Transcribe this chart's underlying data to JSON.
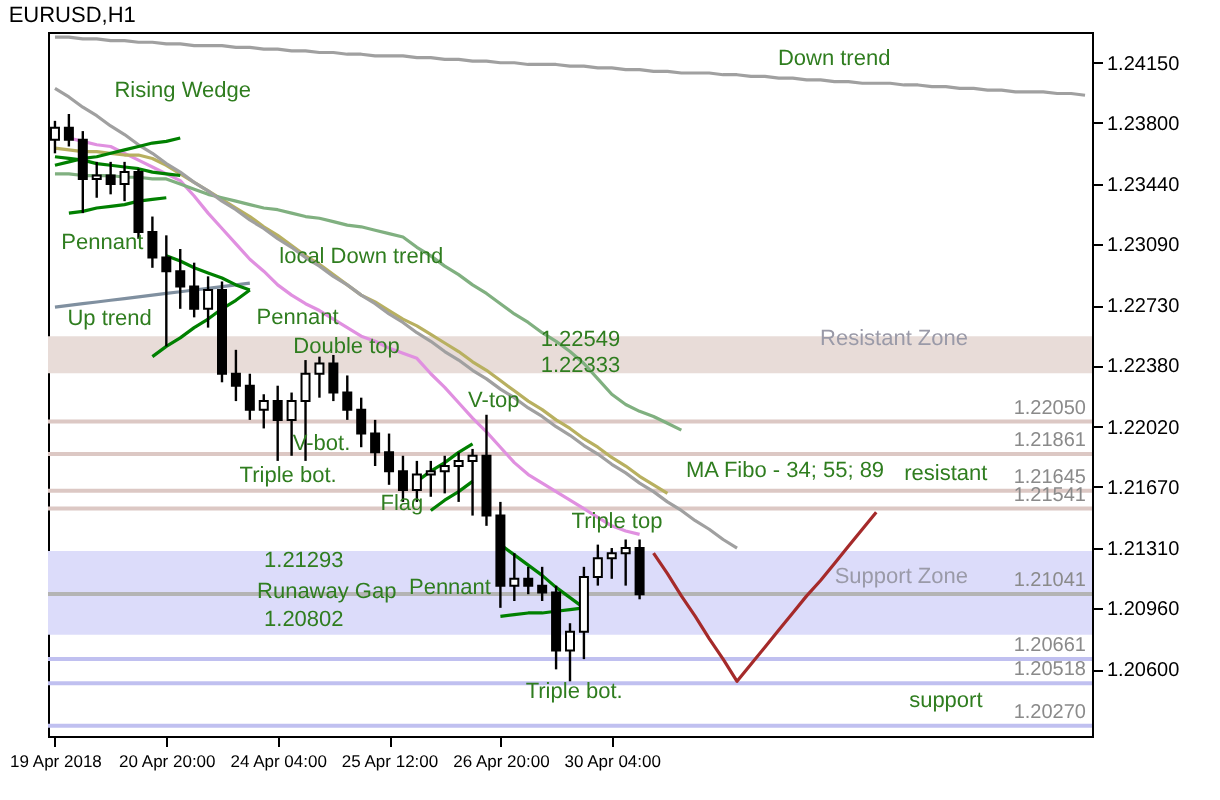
{
  "chart_data": {
    "type": "candlestick",
    "title": "EURUSD,H1",
    "color": "#000000",
    "categories": [
      "19 Apr 2018",
      null,
      null,
      null,
      null,
      null,
      null,
      null,
      "20 Apr 20:00",
      null,
      null,
      null,
      null,
      null,
      null,
      null,
      "24 Apr 04:00",
      null,
      null,
      null,
      null,
      null,
      null,
      null,
      "25 Apr 12:00",
      null,
      null,
      null,
      null,
      null,
      null,
      null,
      "26 Apr 20:00",
      null,
      null,
      null,
      null,
      null,
      null,
      null,
      "30 Apr 04:00",
      null,
      null,
      null,
      null,
      null,
      null,
      null,
      null,
      null,
      null,
      null,
      null,
      null,
      null,
      null,
      null,
      null,
      null,
      null,
      null,
      null,
      null,
      null,
      null,
      null,
      null,
      null,
      null,
      null,
      null,
      null,
      null,
      null,
      null
    ],
    "ohlc": [
      [
        1.237,
        1.2381,
        1.2362,
        1.2377
      ],
      [
        1.2377,
        1.2385,
        1.2366,
        1.237
      ],
      [
        1.237,
        1.2375,
        1.2327,
        1.2347
      ],
      [
        1.2347,
        1.2357,
        1.2336,
        1.2349
      ],
      [
        1.2349,
        1.2357,
        1.2338,
        1.2344
      ],
      [
        1.2344,
        1.2357,
        1.2334,
        1.2351
      ],
      [
        1.2351,
        1.2353,
        1.2312,
        1.2316
      ],
      [
        1.2316,
        1.2325,
        1.2295,
        1.2301
      ],
      [
        1.2301,
        1.2314,
        1.2249,
        1.2293
      ],
      [
        1.2293,
        1.2306,
        1.2271,
        1.2284
      ],
      [
        1.2284,
        1.2298,
        1.2266,
        1.2271
      ],
      [
        1.2271,
        1.229,
        1.226,
        1.2282
      ],
      [
        1.2282,
        1.2287,
        1.2228,
        1.2233
      ],
      [
        1.2233,
        1.2247,
        1.2217,
        1.2226
      ],
      [
        1.2226,
        1.2233,
        1.2206,
        1.2212
      ],
      [
        1.2212,
        1.2221,
        1.2201,
        1.2217
      ],
      [
        1.2217,
        1.2226,
        1.2182,
        1.2206
      ],
      [
        1.2206,
        1.2222,
        1.2185,
        1.2217
      ],
      [
        1.2217,
        1.2241,
        1.2182,
        1.2233
      ],
      [
        1.2233,
        1.2243,
        1.2219,
        1.2239
      ],
      [
        1.2239,
        1.2244,
        1.2217,
        1.2222
      ],
      [
        1.2222,
        1.2232,
        1.2206,
        1.2212
      ],
      [
        1.2212,
        1.2219,
        1.219,
        1.2198
      ],
      [
        1.2198,
        1.2206,
        1.2179,
        1.2187
      ],
      [
        1.2187,
        1.2198,
        1.2168,
        1.2176
      ],
      [
        1.2176,
        1.2185,
        1.2158,
        1.2165
      ],
      [
        1.2165,
        1.2182,
        1.2158,
        1.2174
      ],
      [
        1.2174,
        1.2182,
        1.2161,
        1.2176
      ],
      [
        1.2176,
        1.2185,
        1.2163,
        1.2179
      ],
      [
        1.2179,
        1.2187,
        1.2158,
        1.2182
      ],
      [
        1.2182,
        1.2189,
        1.215,
        1.2185
      ],
      [
        1.2185,
        1.2209,
        1.2144,
        1.215
      ],
      [
        1.215,
        1.2158,
        1.2096,
        1.2109
      ],
      [
        1.2109,
        1.2128,
        1.21,
        1.2113
      ],
      [
        1.2113,
        1.212,
        1.2104,
        1.2109
      ],
      [
        1.2109,
        1.212,
        1.21,
        1.2105
      ],
      [
        1.2105,
        1.2109,
        1.206,
        1.2071
      ],
      [
        1.2071,
        1.2087,
        1.2053,
        1.2082
      ],
      [
        1.2082,
        1.212,
        1.2066,
        1.2114
      ],
      [
        1.2114,
        1.2133,
        1.2109,
        1.2125
      ],
      [
        1.2125,
        1.2131,
        1.2113,
        1.2128
      ],
      [
        1.2128,
        1.2136,
        1.2109,
        1.2131
      ],
      [
        1.2131,
        1.2136,
        1.2101,
        1.2104
      ],
      null,
      null,
      null,
      null,
      null,
      null,
      null,
      null,
      null,
      null,
      null,
      null,
      null,
      null,
      null,
      null,
      null,
      null,
      null,
      null,
      null,
      null,
      null,
      null,
      null,
      null,
      null,
      null,
      null,
      null,
      null,
      null
    ],
    "series": [
      {
        "type": "line",
        "color": "#e090e0",
        "values": [
          null,
          1.2371,
          1.2369,
          1.2367,
          1.2366,
          1.2362,
          1.2358,
          1.2354,
          1.235,
          1.2346,
          1.2337,
          1.2327,
          1.2318,
          1.2309,
          1.23,
          1.2293,
          1.2285,
          1.2279,
          1.2274,
          1.227,
          1.2265,
          1.226,
          1.2255,
          1.2252,
          1.2248,
          1.2245,
          1.2242,
          1.2233,
          1.2225,
          1.2216,
          1.2207,
          1.2199,
          1.219,
          1.2181,
          1.2174,
          1.2169,
          1.2164,
          1.2159,
          1.2154,
          1.2149,
          1.2144,
          1.2141,
          1.2139,
          null,
          null,
          null,
          null,
          null,
          null,
          null,
          null,
          null,
          null,
          null,
          null,
          null,
          null,
          null,
          null,
          null,
          null,
          null,
          null,
          null,
          null,
          null,
          null,
          null,
          null,
          null,
          null,
          null,
          null,
          null,
          null
        ]
      },
      {
        "type": "line",
        "color": "#b8b060",
        "values": [
          1.2365,
          1.2364,
          1.2363,
          1.2363,
          1.2362,
          1.2361,
          1.2361,
          1.2359,
          1.2355,
          1.235,
          1.2345,
          1.234,
          1.2335,
          1.233,
          1.2325,
          1.2319,
          1.2314,
          1.2308,
          1.2302,
          1.2297,
          1.2291,
          1.2285,
          1.2279,
          1.2275,
          1.227,
          1.2265,
          1.2261,
          1.2256,
          1.2251,
          1.2246,
          1.224,
          1.2235,
          1.2229,
          1.2223,
          1.2217,
          1.2212,
          1.2206,
          1.2201,
          1.2195,
          1.219,
          1.2184,
          1.2179,
          1.2173,
          1.2168,
          1.2163,
          null,
          null,
          null,
          null,
          null,
          null,
          null,
          null,
          null,
          null,
          null,
          null,
          null,
          null,
          null,
          null,
          null,
          null,
          null,
          null,
          null,
          null,
          null,
          null,
          null,
          null,
          null,
          null,
          null,
          null
        ]
      },
      {
        "type": "line",
        "color": "#80b080",
        "values": [
          1.235,
          1.235,
          1.2349,
          1.2349,
          1.2349,
          1.2348,
          1.2348,
          1.2347,
          1.2347,
          1.2344,
          1.2341,
          1.2338,
          1.2336,
          1.2334,
          1.2332,
          1.233,
          1.2329,
          1.2327,
          1.2325,
          1.2324,
          1.2322,
          1.232,
          1.2319,
          1.2317,
          1.2315,
          1.2313,
          1.2307,
          1.2302,
          1.2296,
          1.2291,
          1.2285,
          1.228,
          1.2274,
          1.2268,
          1.2263,
          1.2257,
          1.2252,
          1.2246,
          1.2239,
          1.223,
          1.2221,
          1.2215,
          1.2211,
          1.2208,
          1.2204,
          1.22,
          null,
          null,
          null,
          null,
          null,
          null,
          null,
          null,
          null,
          null,
          null,
          null,
          null,
          null,
          null,
          null,
          null,
          null,
          null,
          null,
          null,
          null,
          null,
          null,
          null,
          null,
          null,
          null,
          null
        ]
      },
      {
        "type": "line",
        "color": "#a0a0a0",
        "values": [
          1.243,
          1.243,
          1.2429,
          1.2429,
          1.2428,
          1.2428,
          1.2427,
          1.2427,
          1.2426,
          1.2426,
          1.2425,
          1.2425,
          1.2425,
          1.2424,
          1.2424,
          1.2423,
          1.2423,
          1.2422,
          1.2422,
          1.2421,
          1.2421,
          1.242,
          1.242,
          1.2419,
          1.2419,
          1.2419,
          1.2418,
          1.2418,
          1.2417,
          1.2417,
          1.2416,
          1.2416,
          1.2415,
          1.2415,
          1.2414,
          1.2414,
          1.2414,
          1.2413,
          1.2413,
          1.2412,
          1.2412,
          1.2411,
          1.2411,
          1.241,
          1.241,
          1.2409,
          1.2409,
          1.2409,
          1.2408,
          1.2408,
          1.2407,
          1.2407,
          1.2406,
          1.2406,
          1.2405,
          1.2405,
          1.2404,
          1.2404,
          1.2403,
          1.2403,
          1.2403,
          1.2402,
          1.2402,
          1.2401,
          1.2401,
          1.24,
          1.24,
          1.2399,
          1.2399,
          1.2398,
          1.2398,
          1.2398,
          1.2397,
          1.2397,
          1.2396
        ]
      },
      {
        "type": "line",
        "color": "#a0a0a0",
        "values": [
          1.24,
          1.2395,
          1.2389,
          1.2384,
          1.2378,
          1.2373,
          1.2367,
          1.2362,
          1.2356,
          1.2351,
          1.2345,
          1.234,
          1.2334,
          1.2329,
          1.2323,
          1.2318,
          1.2312,
          1.2307,
          1.2301,
          1.2296,
          1.229,
          1.2285,
          1.2279,
          1.2274,
          1.2268,
          1.2263,
          1.2257,
          1.2252,
          1.2246,
          1.2241,
          1.2235,
          1.223,
          1.2224,
          1.2219,
          1.2213,
          1.2208,
          1.2202,
          1.2197,
          1.2191,
          1.2186,
          1.218,
          1.2175,
          1.2169,
          1.2164,
          1.2158,
          1.2153,
          1.2147,
          1.2142,
          1.2136,
          1.2131,
          null,
          null,
          null,
          null,
          null,
          null,
          null,
          null,
          null,
          null,
          null,
          null,
          null,
          null,
          null,
          null,
          null,
          null,
          null,
          null,
          null,
          null,
          null,
          null,
          null
        ]
      },
      {
        "type": "line",
        "color": "#8090a0",
        "values": [
          1.2272,
          1.2273,
          1.2274,
          1.2275,
          1.2276,
          1.2277,
          1.2278,
          1.2279,
          1.228,
          1.2281,
          1.2282,
          1.2283,
          1.2284,
          1.2285,
          1.2286,
          null,
          null,
          null,
          null,
          null,
          null,
          null,
          null,
          null,
          null,
          null,
          null,
          null,
          null,
          null,
          null,
          null,
          null,
          null,
          null,
          null,
          null,
          null,
          null,
          null,
          null,
          null,
          null,
          null,
          null,
          null,
          null,
          null,
          null,
          null,
          null,
          null,
          null,
          null,
          null,
          null,
          null,
          null,
          null,
          null,
          null,
          null,
          null,
          null,
          null,
          null,
          null,
          null,
          null,
          null,
          null,
          null,
          null,
          null,
          null
        ]
      },
      {
        "type": "line",
        "color": "#008000",
        "values": [
          1.2355,
          1.2357,
          1.2359,
          1.236,
          1.2362,
          1.2364,
          1.2366,
          1.2368,
          1.2369,
          1.2371,
          null,
          null,
          null,
          null,
          null,
          null,
          null,
          null,
          null,
          null,
          null,
          null,
          null,
          null,
          null,
          null,
          null,
          null,
          null,
          null,
          null,
          null,
          null,
          null,
          null,
          null,
          null,
          null,
          null,
          null,
          null,
          null,
          null,
          null,
          null,
          null,
          null,
          null,
          null,
          null,
          null,
          null,
          null,
          null,
          null,
          null,
          null,
          null,
          null,
          null,
          null,
          null,
          null,
          null,
          null,
          null,
          null,
          null,
          null,
          null,
          null,
          null,
          null,
          null,
          null
        ]
      },
      {
        "type": "line",
        "color": "#008000",
        "values": [
          1.236,
          1.2359,
          1.2358,
          1.2356,
          1.2355,
          1.2354,
          1.2353,
          1.2351,
          1.235,
          1.2349,
          null,
          null,
          null,
          null,
          null,
          null,
          null,
          null,
          null,
          null,
          null,
          null,
          null,
          null,
          null,
          null,
          null,
          null,
          null,
          null,
          null,
          null,
          null,
          null,
          null,
          null,
          null,
          null,
          null,
          null,
          null,
          null,
          null,
          null,
          null,
          null,
          null,
          null,
          null,
          null,
          null,
          null,
          null,
          null,
          null,
          null,
          null,
          null,
          null,
          null,
          null,
          null,
          null,
          null,
          null,
          null,
          null,
          null,
          null,
          null,
          null,
          null,
          null,
          null,
          null
        ]
      },
      {
        "type": "line",
        "color": "#008000",
        "values": [
          null,
          1.2327,
          1.2328,
          1.233,
          1.2331,
          1.2332,
          1.2334,
          1.2335,
          1.2336,
          null,
          null,
          null,
          null,
          null,
          null,
          null,
          null,
          null,
          null,
          null,
          null,
          null,
          null,
          null,
          null,
          null,
          null,
          null,
          null,
          null,
          null,
          null,
          null,
          null,
          null,
          null,
          null,
          null,
          null,
          null,
          null,
          null,
          null,
          null,
          null,
          null,
          null,
          null,
          null,
          null,
          null,
          null,
          null,
          null,
          null,
          null,
          null,
          null,
          null,
          null,
          null,
          null,
          null,
          null,
          null,
          null,
          null,
          null,
          null,
          null,
          null,
          null,
          null,
          null,
          null
        ]
      },
      {
        "type": "line",
        "color": "#008000",
        "values": [
          null,
          null,
          null,
          null,
          null,
          null,
          null,
          null,
          1.2302,
          1.2299,
          1.2295,
          1.2292,
          1.2289,
          1.2285,
          1.2282,
          null,
          null,
          null,
          null,
          null,
          null,
          null,
          null,
          null,
          null,
          null,
          null,
          null,
          null,
          null,
          null,
          null,
          null,
          null,
          null,
          null,
          null,
          null,
          null,
          null,
          null,
          null,
          null,
          null,
          null,
          null,
          null,
          null,
          null,
          null,
          null,
          null,
          null,
          null,
          null,
          null,
          null,
          null,
          null,
          null,
          null,
          null,
          null,
          null,
          null,
          null,
          null,
          null,
          null,
          null,
          null,
          null,
          null,
          null,
          null
        ]
      },
      {
        "type": "line",
        "color": "#008000",
        "values": [
          null,
          null,
          null,
          null,
          null,
          null,
          null,
          1.2243,
          1.2249,
          1.2254,
          1.226,
          1.2265,
          1.2271,
          1.2276,
          1.2282,
          null,
          null,
          null,
          null,
          null,
          null,
          null,
          null,
          null,
          null,
          null,
          null,
          null,
          null,
          null,
          null,
          null,
          null,
          null,
          null,
          null,
          null,
          null,
          null,
          null,
          null,
          null,
          null,
          null,
          null,
          null,
          null,
          null,
          null,
          null,
          null,
          null,
          null,
          null,
          null,
          null,
          null,
          null,
          null,
          null,
          null,
          null,
          null,
          null,
          null,
          null,
          null,
          null,
          null,
          null,
          null,
          null,
          null,
          null,
          null
        ]
      },
      {
        "type": "line",
        "color": "#008000",
        "values": [
          null,
          null,
          null,
          null,
          null,
          null,
          null,
          null,
          null,
          null,
          null,
          null,
          null,
          null,
          null,
          null,
          null,
          null,
          null,
          null,
          null,
          null,
          null,
          null,
          null,
          null,
          1.217,
          1.2176,
          1.2181,
          1.2187,
          1.2192,
          null,
          null,
          null,
          null,
          null,
          null,
          null,
          null,
          null,
          null,
          null,
          null,
          null,
          null,
          null,
          null,
          null,
          null,
          null,
          null,
          null,
          null,
          null,
          null,
          null,
          null,
          null,
          null,
          null,
          null,
          null,
          null,
          null,
          null,
          null,
          null,
          null,
          null,
          null,
          null,
          null,
          null,
          null,
          null
        ]
      },
      {
        "type": "line",
        "color": "#008000",
        "values": [
          null,
          null,
          null,
          null,
          null,
          null,
          null,
          null,
          null,
          null,
          null,
          null,
          null,
          null,
          null,
          null,
          null,
          null,
          null,
          null,
          null,
          null,
          null,
          null,
          null,
          null,
          null,
          1.2153,
          1.2159,
          1.2164,
          1.217,
          null,
          null,
          null,
          null,
          null,
          null,
          null,
          null,
          null,
          null,
          null,
          null,
          null,
          null,
          null,
          null,
          null,
          null,
          null,
          null,
          null,
          null,
          null,
          null,
          null,
          null,
          null,
          null,
          null,
          null,
          null,
          null,
          null,
          null,
          null,
          null,
          null,
          null,
          null,
          null,
          null,
          null,
          null,
          null
        ]
      },
      {
        "type": "line",
        "color": "#008000",
        "values": [
          null,
          null,
          null,
          null,
          null,
          null,
          null,
          null,
          null,
          null,
          null,
          null,
          null,
          null,
          null,
          null,
          null,
          null,
          null,
          null,
          null,
          null,
          null,
          null,
          null,
          null,
          null,
          null,
          null,
          null,
          null,
          null,
          1.2133,
          1.2127,
          1.2121,
          1.2115,
          1.2108,
          1.2102,
          1.2096,
          null,
          null,
          null,
          null,
          null,
          null,
          null,
          null,
          null,
          null,
          null,
          null,
          null,
          null,
          null,
          null,
          null,
          null,
          null,
          null,
          null,
          null,
          null,
          null,
          null,
          null,
          null,
          null,
          null,
          null,
          null,
          null,
          null,
          null,
          null,
          null
        ]
      },
      {
        "type": "line",
        "color": "#008000",
        "values": [
          null,
          null,
          null,
          null,
          null,
          null,
          null,
          null,
          null,
          null,
          null,
          null,
          null,
          null,
          null,
          null,
          null,
          null,
          null,
          null,
          null,
          null,
          null,
          null,
          null,
          null,
          null,
          null,
          null,
          null,
          null,
          null,
          1.2091,
          1.2092,
          1.2093,
          1.2093,
          1.2094,
          1.2095,
          1.2096,
          null,
          null,
          null,
          null,
          null,
          null,
          null,
          null,
          null,
          null,
          null,
          null,
          null,
          null,
          null,
          null,
          null,
          null,
          null,
          null,
          null,
          null,
          null,
          null,
          null,
          null,
          null,
          null,
          null,
          null,
          null,
          null,
          null,
          null,
          null,
          null
        ]
      },
      {
        "type": "line",
        "color": "#a52a2a",
        "values": [
          null,
          null,
          null,
          null,
          null,
          null,
          null,
          null,
          null,
          null,
          null,
          null,
          null,
          null,
          null,
          null,
          null,
          null,
          null,
          null,
          null,
          null,
          null,
          null,
          null,
          null,
          null,
          null,
          null,
          null,
          null,
          null,
          null,
          null,
          null,
          null,
          null,
          null,
          null,
          null,
          null,
          null,
          null,
          1.2128,
          1.2116,
          1.2103,
          1.2091,
          1.2078,
          1.2066,
          1.2053,
          1.2063,
          1.2073,
          1.2083,
          1.2093,
          1.2103,
          1.2112,
          1.2122,
          1.2132,
          1.2142,
          1.2152,
          null,
          null,
          null,
          null,
          null,
          null,
          null,
          null,
          null,
          null,
          null,
          null,
          null,
          null,
          null
        ]
      }
    ],
    "ylim": [
      1.2021,
      1.2433
    ],
    "yticks": [
      {
        "value": 1.2415,
        "label": "1.24150"
      },
      {
        "value": 1.238,
        "label": "1.23800"
      },
      {
        "value": 1.2344,
        "label": "1.23440"
      },
      {
        "value": 1.2309,
        "label": "1.23090"
      },
      {
        "value": 1.2273,
        "label": "1.22730"
      },
      {
        "value": 1.2238,
        "label": "1.22380"
      },
      {
        "value": 1.2202,
        "label": "1.22020"
      },
      {
        "value": 1.2167,
        "label": "1.21670"
      },
      {
        "value": 1.2131,
        "label": "1.21310"
      },
      {
        "value": 1.2096,
        "label": "1.20960"
      },
      {
        "value": 1.206,
        "label": "1.20600"
      }
    ],
    "bands": [
      {
        "axis": "y",
        "from": 1.22333,
        "to": 1.22549,
        "label": "Resistant Zone",
        "color": "#e8dcd8"
      },
      {
        "axis": "y",
        "from": 1.20802,
        "to": 1.21293,
        "label": "Support Zone",
        "color": "#dcdcfa"
      }
    ],
    "ref_lines": [
      {
        "axis": "y",
        "value": 1.2205,
        "label": "1.22050",
        "color": "#dcc8c4"
      },
      {
        "axis": "y",
        "value": 1.21861,
        "label": "1.21861",
        "color": "#dcc8c4"
      },
      {
        "axis": "y",
        "value": 1.21645,
        "label": "1.21645",
        "color": "#dcc8c4"
      },
      {
        "axis": "y",
        "value": 1.21541,
        "label": "1.21541",
        "color": "#dcc8c4"
      },
      {
        "axis": "y",
        "value": 1.21041,
        "label": "1.21041",
        "color": "#b4b4b4"
      },
      {
        "axis": "y",
        "value": 1.20661,
        "label": "1.20661",
        "color": "#c0c0f0"
      },
      {
        "axis": "y",
        "value": 1.20518,
        "label": "1.20518",
        "color": "#c0c0f0"
      },
      {
        "axis": "y",
        "value": 1.2027,
        "label": "1.20270",
        "color": "#c0c0f0"
      }
    ],
    "annotations": [
      "Rising Wedge",
      "Pennant",
      "Up trend",
      "Pennant",
      "local Down trend",
      "Down trend",
      "Double top",
      "V-bot.",
      "Triple bot.",
      "Flag",
      "V-top",
      "Pennant",
      "Triple top",
      "Triple bot.",
      "MA Fibo - 34; 55; 89",
      "Runaway Gap",
      "1.21293",
      "1.20802",
      "1.22549",
      "1.22333",
      "resistant",
      "support"
    ]
  }
}
